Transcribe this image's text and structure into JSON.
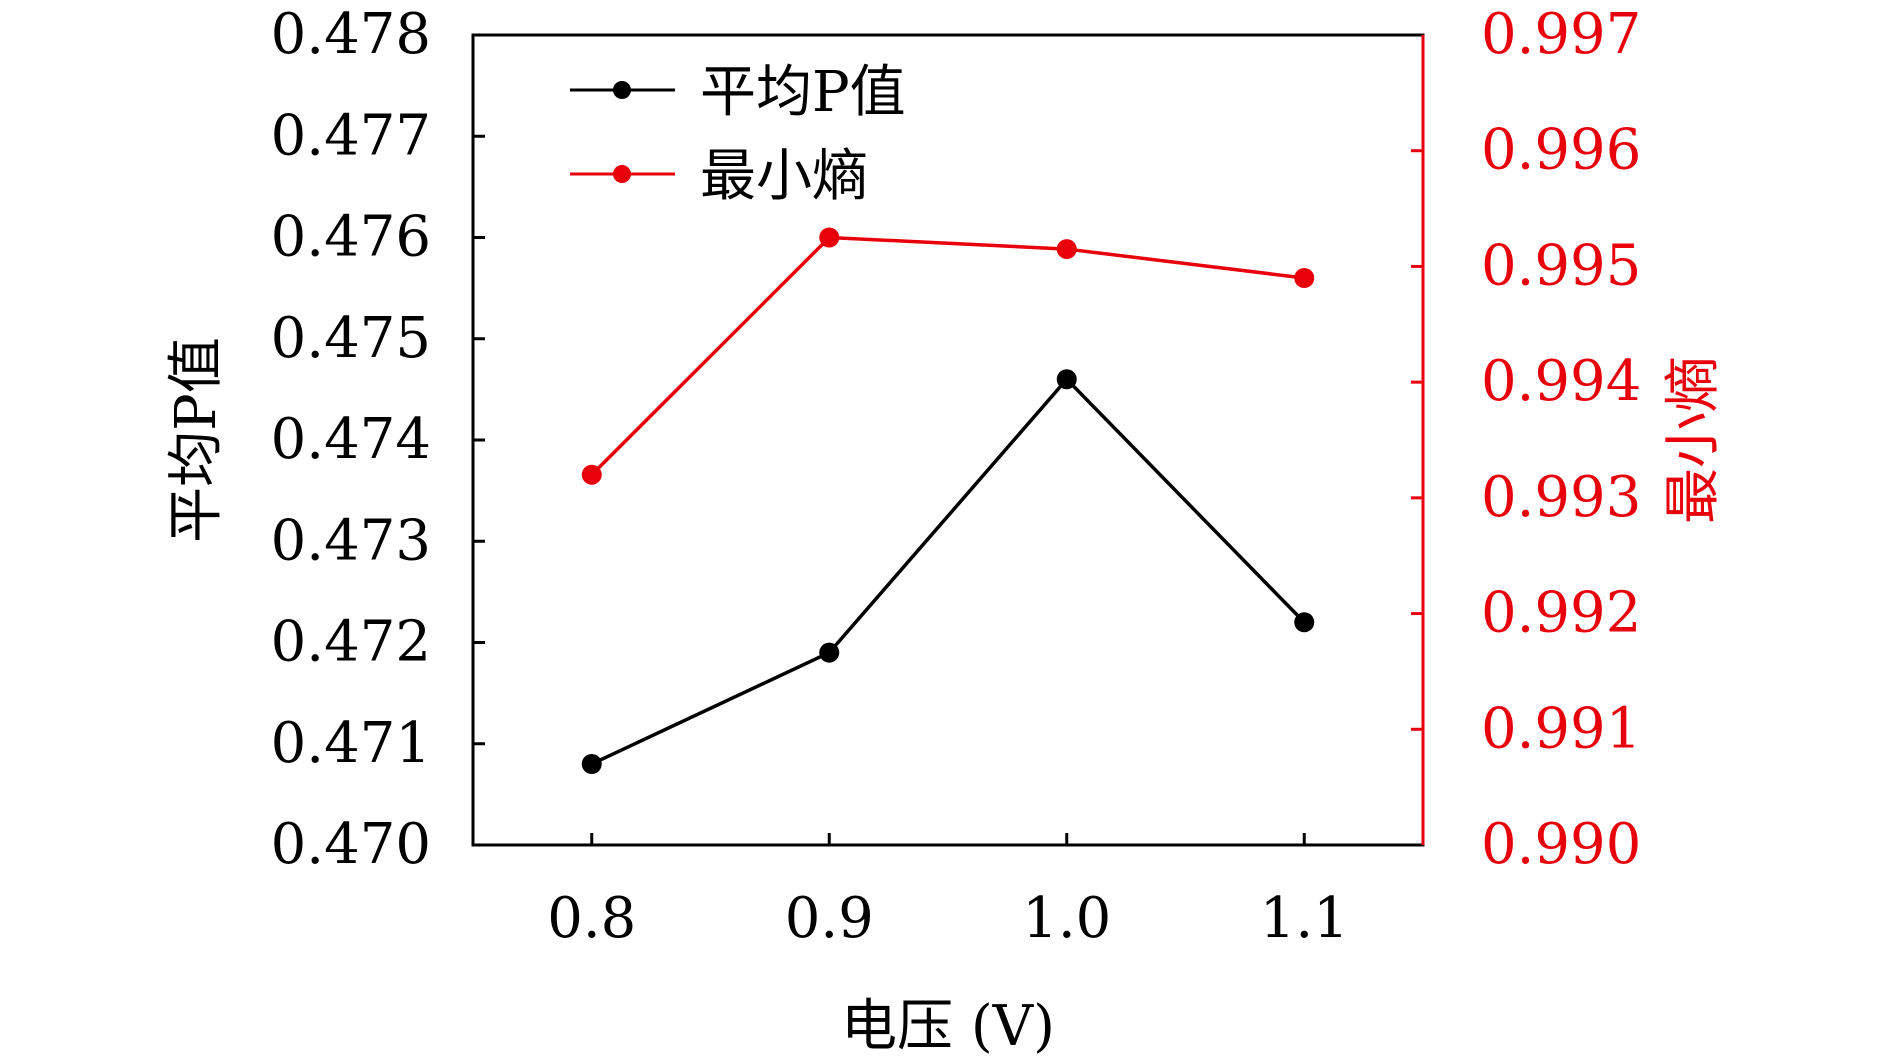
{
  "chart_data": {
    "type": "line",
    "x": [
      0.8,
      0.9,
      1.0,
      1.1
    ],
    "x_tick_labels": [
      "0.8",
      "0.9",
      "1.0",
      "1.1"
    ],
    "xlim": [
      0.75,
      1.15
    ],
    "xlabel": "电压 (V)",
    "y_left": {
      "label": "平均P值",
      "ylim": [
        0.47,
        0.478
      ],
      "ticks": [
        0.47,
        0.471,
        0.472,
        0.473,
        0.474,
        0.475,
        0.476,
        0.477,
        0.478
      ],
      "tick_labels": [
        "0.470",
        "0.471",
        "0.472",
        "0.473",
        "0.474",
        "0.475",
        "0.476",
        "0.477",
        "0.478"
      ],
      "color": "#000000"
    },
    "y_right": {
      "label": "最小熵",
      "ylim": [
        0.99,
        0.997
      ],
      "ticks": [
        0.99,
        0.991,
        0.992,
        0.993,
        0.994,
        0.995,
        0.996,
        0.997
      ],
      "tick_labels": [
        "0.990",
        "0.991",
        "0.992",
        "0.993",
        "0.994",
        "0.995",
        "0.996",
        "0.997"
      ],
      "color": "#e8000b"
    },
    "series": [
      {
        "name": "平均P值",
        "axis": "left",
        "color": "#000000",
        "values": [
          0.4708,
          0.4719,
          0.4746,
          0.4722
        ]
      },
      {
        "name": "最小熵",
        "axis": "right",
        "color": "#e8000b",
        "values": [
          0.9932,
          0.99525,
          0.99515,
          0.9949
        ]
      }
    ],
    "legend_position": "top-left",
    "grid": false
  }
}
